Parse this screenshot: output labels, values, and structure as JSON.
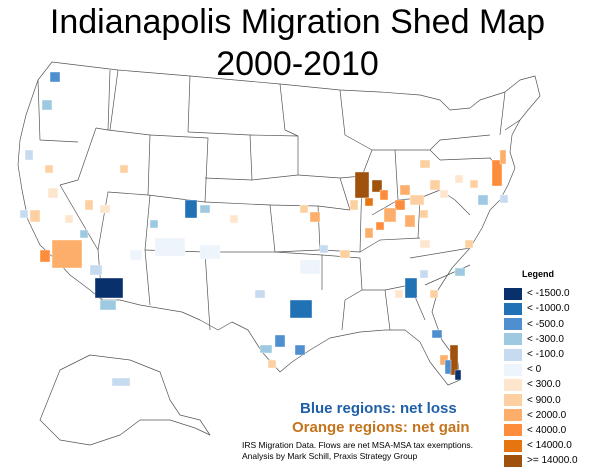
{
  "title": {
    "line1": "Indianapolis Migration Shed Map",
    "line2": "2000-2010"
  },
  "legend": {
    "title": "Legend",
    "items": [
      {
        "label": "< -1500.0",
        "color": "#08306b"
      },
      {
        "label": "< -1000.0",
        "color": "#2171b5"
      },
      {
        "label": "< -500.0",
        "color": "#4f8fcf"
      },
      {
        "label": "< -300.0",
        "color": "#9ecae1"
      },
      {
        "label": "< -100.0",
        "color": "#c6dbef"
      },
      {
        "label": "< 0",
        "color": "#eef4fb"
      },
      {
        "label": "< 300.0",
        "color": "#fee6ce"
      },
      {
        "label": "< 900.0",
        "color": "#fdd0a2"
      },
      {
        "label": "< 2000.0",
        "color": "#fdae6b"
      },
      {
        "label": "< 4000.0",
        "color": "#fd8d3c"
      },
      {
        "label": "< 14000.0",
        "color": "#e6750f"
      },
      {
        "label": ">= 14000.0",
        "color": "#a0520c"
      }
    ]
  },
  "notes": {
    "loss": "Blue regions: net loss",
    "gain": "Orange regions: net gain"
  },
  "source": {
    "line1": "IRS Migration Data. Flows are net MSA-MSA tax exemptions.",
    "line2": "Analysis by Mark Schill, Praxis Strategy Group"
  }
}
